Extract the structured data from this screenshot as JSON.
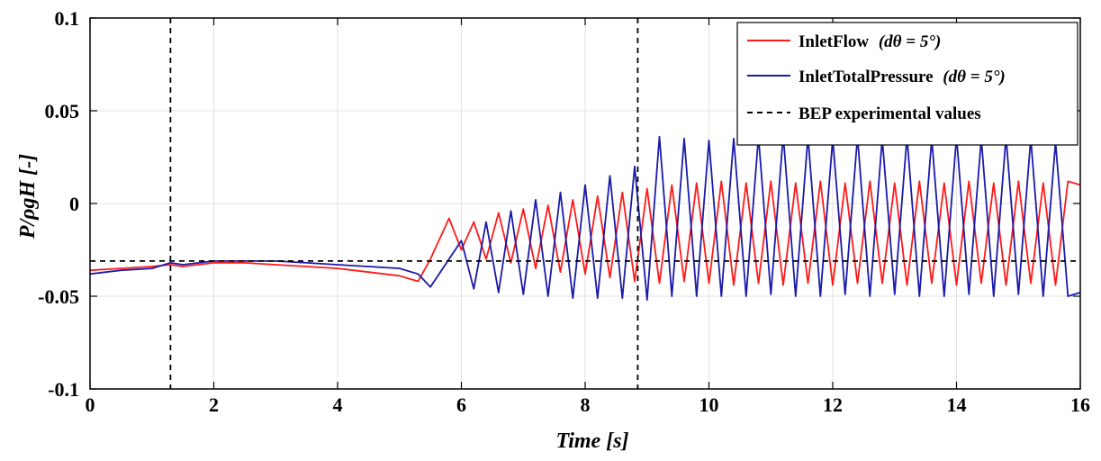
{
  "chart_data": {
    "type": "line",
    "xlabel": "Time [s]",
    "ylabel": "P/ρgH [-]",
    "xlim": [
      0,
      16
    ],
    "ylim": [
      -0.1,
      0.1
    ],
    "x_ticks": [
      0,
      2,
      4,
      6,
      8,
      10,
      12,
      14,
      16
    ],
    "x_tick_labels": [
      "0",
      "2",
      "4",
      "6",
      "8",
      "10",
      "12",
      "14",
      "16"
    ],
    "y_ticks": [
      -0.1,
      -0.05,
      0,
      0.05,
      0.1
    ],
    "y_tick_labels": [
      "-0.1",
      "-0.05",
      "0",
      "0.05",
      "0.1"
    ],
    "grid": true,
    "legend_position": "top-right",
    "series": [
      {
        "name": "InletFlow",
        "legend_name": "InletFlow",
        "legend_suffix": "(dθ = 5°)",
        "color": "#ff1a1a",
        "x": [
          0,
          0.5,
          1,
          1.3,
          1.5,
          2,
          2.5,
          3,
          3.5,
          4,
          4.5,
          5,
          5.3,
          5.5,
          5.8,
          6.0,
          6.2,
          6.4,
          6.6,
          6.8,
          7.0,
          7.2,
          7.4,
          7.6,
          7.8,
          8.0,
          8.2,
          8.4,
          8.6,
          8.8,
          9.0,
          9.2,
          9.4,
          9.6,
          9.8,
          10.0,
          10.2,
          10.4,
          10.6,
          10.8,
          11.0,
          11.2,
          11.4,
          11.6,
          11.8,
          12.0,
          12.2,
          12.4,
          12.6,
          12.8,
          13.0,
          13.2,
          13.4,
          13.6,
          13.8,
          14.0,
          14.2,
          14.4,
          14.6,
          14.8,
          15.0,
          15.2,
          15.4,
          15.6,
          15.8,
          16.0
        ],
        "y": [
          -0.036,
          -0.035,
          -0.034,
          -0.033,
          -0.034,
          -0.032,
          -0.032,
          -0.033,
          -0.034,
          -0.035,
          -0.037,
          -0.039,
          -0.042,
          -0.03,
          -0.008,
          -0.025,
          -0.01,
          -0.03,
          -0.005,
          -0.032,
          -0.003,
          -0.035,
          -0.001,
          -0.037,
          0.002,
          -0.038,
          0.004,
          -0.04,
          0.006,
          -0.042,
          0.008,
          -0.043,
          0.01,
          -0.042,
          0.011,
          -0.043,
          0.012,
          -0.044,
          0.011,
          -0.043,
          0.012,
          -0.044,
          0.011,
          -0.043,
          0.012,
          -0.044,
          0.011,
          -0.043,
          0.012,
          -0.043,
          0.011,
          -0.044,
          0.012,
          -0.043,
          0.011,
          -0.044,
          0.012,
          -0.043,
          0.011,
          -0.044,
          0.012,
          -0.043,
          0.011,
          -0.044,
          0.012,
          0.01
        ]
      },
      {
        "name": "InletTotalPressure",
        "legend_name": "InletTotalPressure",
        "legend_suffix": "(dθ = 5°)",
        "color": "#1a1aaa",
        "x": [
          0,
          0.5,
          1,
          1.3,
          1.5,
          2,
          2.5,
          3,
          3.5,
          4,
          4.5,
          5,
          5.3,
          5.5,
          5.8,
          6.0,
          6.2,
          6.4,
          6.6,
          6.8,
          7.0,
          7.2,
          7.4,
          7.6,
          7.8,
          8.0,
          8.2,
          8.4,
          8.6,
          8.8,
          9.0,
          9.2,
          9.4,
          9.6,
          9.8,
          10.0,
          10.2,
          10.4,
          10.6,
          10.8,
          11.0,
          11.2,
          11.4,
          11.6,
          11.8,
          12.0,
          12.2,
          12.4,
          12.6,
          12.8,
          13.0,
          13.2,
          13.4,
          13.6,
          13.8,
          14.0,
          14.2,
          14.4,
          14.6,
          14.8,
          15.0,
          15.2,
          15.4,
          15.6,
          15.8,
          16.0
        ],
        "y": [
          -0.038,
          -0.036,
          -0.035,
          -0.032,
          -0.033,
          -0.031,
          -0.031,
          -0.031,
          -0.032,
          -0.033,
          -0.034,
          -0.035,
          -0.038,
          -0.045,
          -0.03,
          -0.02,
          -0.046,
          -0.01,
          -0.048,
          -0.004,
          -0.049,
          0.002,
          -0.05,
          0.006,
          -0.051,
          0.01,
          -0.051,
          0.015,
          -0.051,
          0.02,
          -0.052,
          0.036,
          -0.05,
          0.035,
          -0.05,
          0.034,
          -0.05,
          0.035,
          -0.05,
          0.036,
          -0.049,
          0.037,
          -0.05,
          0.036,
          -0.05,
          0.035,
          -0.049,
          0.036,
          -0.05,
          0.035,
          -0.049,
          0.036,
          -0.05,
          0.035,
          -0.05,
          0.036,
          -0.049,
          0.035,
          -0.05,
          0.036,
          -0.049,
          0.035,
          -0.05,
          0.033,
          -0.05,
          -0.048
        ]
      }
    ],
    "reference_lines": {
      "name": "BEP experimental values",
      "color": "#000000",
      "style": "dashed",
      "horizontal_y": -0.031,
      "vertical_x": [
        1.3,
        8.85
      ]
    }
  }
}
